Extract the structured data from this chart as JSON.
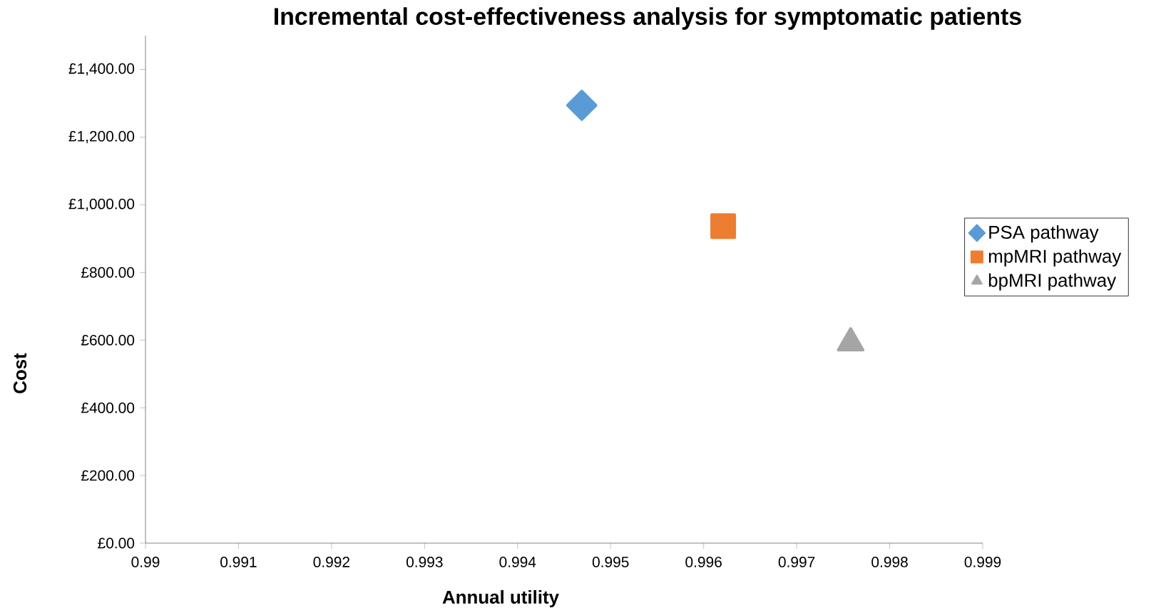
{
  "chart_data": {
    "type": "scatter",
    "title": "Incremental cost-effectiveness analysis for symptomatic patients",
    "xlabel": "Annual utility",
    "ylabel": "Cost",
    "series": [
      {
        "name": "PSA pathway",
        "color": "#5b9bd5",
        "marker": "diamond",
        "x": [
          0.99469
        ],
        "values": [
          1294
        ]
      },
      {
        "name": "mpMRI pathway",
        "color": "#ed7d31",
        "marker": "square",
        "x": [
          0.99621
        ],
        "values": [
          937
        ]
      },
      {
        "name": "bpMRI pathway",
        "color": "#a5a5a5",
        "marker": "triangle",
        "x": [
          0.99758
        ],
        "values": [
          592
        ]
      }
    ],
    "xlim": [
      0.99,
      0.999
    ],
    "xticks": [
      0.99,
      0.991,
      0.992,
      0.993,
      0.994,
      0.995,
      0.996,
      0.997,
      0.998,
      0.999
    ],
    "ylim": [
      0,
      1500
    ],
    "yticks": [
      {
        "value": 0,
        "label": "£0.00"
      },
      {
        "value": 200,
        "label": "£200.00"
      },
      {
        "value": 400,
        "label": "£400.00"
      },
      {
        "value": 600,
        "label": "£600.00"
      },
      {
        "value": 800,
        "label": "£800.00"
      },
      {
        "value": 1000,
        "label": "£1,000.00"
      },
      {
        "value": 1200,
        "label": "£1,200.00"
      },
      {
        "value": 1400,
        "label": "£1,400.00"
      }
    ],
    "grid": false,
    "legend": "right"
  }
}
